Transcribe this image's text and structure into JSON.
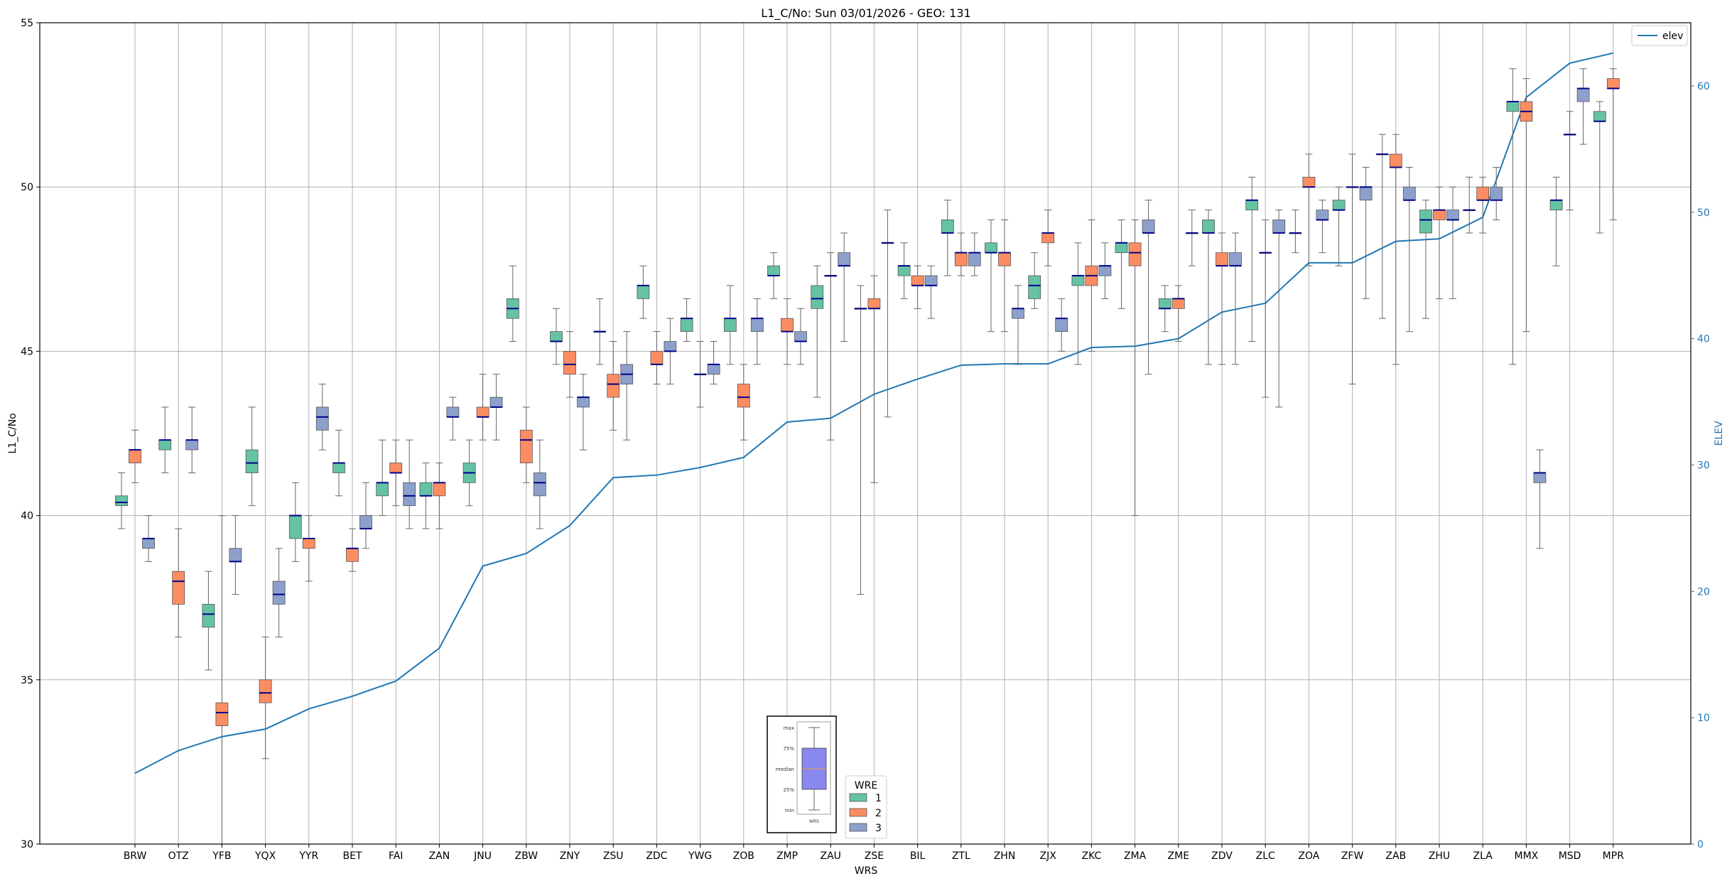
{
  "chart_data": {
    "type": "boxplot",
    "title": "L1_C/No: Sun 03/01/2026 - GEO: 131",
    "xlabel": "WRS",
    "ylabel": "L1_C/No",
    "y2label": "ELEV",
    "ylim": [
      30,
      55
    ],
    "y2lim": [
      0,
      65
    ],
    "yticks": [
      "30",
      "35",
      "40",
      "45",
      "50",
      "55"
    ],
    "y2ticks": [
      "0",
      "10",
      "20",
      "30",
      "40",
      "50",
      "60"
    ],
    "grid": true,
    "categories": [
      "BRW",
      "OTZ",
      "YFB",
      "YQX",
      "YYR",
      "BET",
      "FAI",
      "ZAN",
      "JNU",
      "ZBW",
      "ZNY",
      "ZSU",
      "ZDC",
      "YWG",
      "ZOB",
      "ZMP",
      "ZAU",
      "ZSE",
      "BIL",
      "ZTL",
      "ZHN",
      "ZJX",
      "ZKC",
      "ZMA",
      "ZME",
      "ZDV",
      "ZLC",
      "ZOA",
      "ZFW",
      "ZAB",
      "ZHU",
      "ZLA",
      "MMX",
      "MSD",
      "MPR"
    ],
    "legend_title": "WRE",
    "legend_placement": "lower-center",
    "colors": {
      "1": "#66c2a5",
      "2": "#fc8d62",
      "3": "#8da0cb",
      "elev": "#1f77b4",
      "median": "#00008b"
    },
    "series": [
      {
        "name": "1",
        "boxes": [
          [
            39.6,
            40.3,
            40.4,
            40.6,
            41.3
          ],
          [
            41.3,
            42.0,
            42.3,
            42.3,
            43.3
          ],
          [
            35.3,
            36.6,
            37.0,
            37.3,
            38.3
          ],
          [
            40.3,
            41.3,
            41.6,
            42.0,
            43.3
          ],
          [
            38.6,
            39.3,
            40.0,
            40.0,
            41.0
          ],
          [
            40.6,
            41.3,
            41.6,
            41.6,
            42.6
          ],
          [
            40.0,
            40.6,
            41.0,
            41.0,
            42.3
          ],
          [
            39.6,
            40.6,
            40.6,
            41.0,
            41.6
          ],
          [
            40.3,
            41.0,
            41.3,
            41.6,
            42.3
          ],
          [
            45.3,
            46.0,
            46.3,
            46.6,
            47.6
          ],
          [
            44.6,
            45.3,
            45.3,
            45.6,
            46.3
          ],
          [
            44.6,
            45.6,
            45.6,
            45.6,
            46.6
          ],
          [
            46.0,
            46.6,
            47.0,
            47.0,
            47.6
          ],
          [
            45.3,
            45.6,
            46.0,
            46.0,
            46.6
          ],
          [
            44.6,
            45.6,
            46.0,
            46.0,
            47.0
          ],
          [
            46.6,
            47.3,
            47.3,
            47.6,
            48.0
          ],
          [
            43.6,
            46.3,
            46.6,
            47.0,
            47.6
          ],
          [
            37.6,
            46.3,
            46.3,
            46.3,
            47.0
          ],
          [
            46.6,
            47.3,
            47.6,
            47.6,
            48.3
          ],
          [
            47.3,
            48.6,
            48.6,
            49.0,
            49.6
          ],
          [
            45.6,
            48.0,
            48.0,
            48.3,
            49.0
          ],
          [
            46.3,
            46.6,
            47.0,
            47.3,
            48.0
          ],
          [
            44.6,
            47.0,
            47.3,
            47.3,
            48.3
          ],
          [
            46.3,
            48.0,
            48.3,
            48.3,
            49.0
          ],
          [
            45.6,
            46.3,
            46.3,
            46.6,
            47.0
          ],
          [
            44.6,
            48.6,
            48.6,
            49.0,
            49.3
          ],
          [
            45.3,
            49.3,
            49.6,
            49.6,
            50.3
          ],
          [
            48.0,
            48.6,
            48.6,
            48.6,
            49.3
          ],
          [
            47.6,
            49.3,
            49.3,
            49.6,
            50.0
          ],
          [
            46.0,
            51.0,
            51.0,
            51.0,
            51.6
          ],
          [
            46.0,
            48.6,
            49.0,
            49.3,
            49.6
          ],
          [
            48.6,
            49.3,
            49.3,
            49.3,
            50.3
          ],
          [
            44.6,
            52.3,
            52.6,
            52.6,
            53.6
          ],
          [
            47.6,
            49.3,
            49.6,
            49.6,
            50.3
          ],
          [
            48.6,
            52.0,
            52.0,
            52.3,
            52.6
          ]
        ]
      },
      {
        "name": "2",
        "boxes": [
          [
            41.0,
            41.6,
            42.0,
            42.0,
            42.6
          ],
          [
            36.3,
            37.3,
            38.0,
            38.3,
            39.6
          ],
          [
            30.0,
            33.6,
            34.0,
            34.3,
            40.0
          ],
          [
            32.6,
            34.3,
            34.6,
            35.0,
            36.3
          ],
          [
            38.0,
            39.0,
            39.3,
            39.3,
            40.0
          ],
          [
            38.3,
            38.6,
            39.0,
            39.0,
            39.6
          ],
          [
            40.3,
            41.3,
            41.3,
            41.6,
            42.3
          ],
          [
            39.6,
            40.6,
            41.0,
            41.0,
            41.6
          ],
          [
            42.3,
            43.0,
            43.0,
            43.3,
            44.3
          ],
          [
            41.0,
            41.6,
            42.3,
            42.6,
            43.3
          ],
          [
            43.6,
            44.3,
            44.6,
            45.0,
            45.6
          ],
          [
            42.6,
            43.6,
            44.0,
            44.3,
            45.3
          ],
          [
            44.0,
            44.6,
            44.6,
            45.0,
            45.6
          ],
          [
            43.3,
            44.3,
            44.3,
            44.3,
            45.3
          ],
          [
            42.3,
            43.3,
            43.6,
            44.0,
            44.6
          ],
          [
            44.6,
            45.6,
            45.6,
            46.0,
            46.6
          ],
          [
            42.3,
            47.3,
            47.3,
            47.3,
            48.0
          ],
          [
            41.0,
            46.3,
            46.3,
            46.6,
            47.3
          ],
          [
            46.3,
            47.0,
            47.0,
            47.3,
            47.6
          ],
          [
            47.3,
            47.6,
            48.0,
            48.0,
            48.6
          ],
          [
            45.6,
            47.6,
            48.0,
            48.0,
            49.0
          ],
          [
            47.6,
            48.3,
            48.6,
            48.6,
            49.3
          ],
          [
            45.0,
            47.0,
            47.3,
            47.6,
            49.0
          ],
          [
            40.0,
            47.6,
            48.0,
            48.3,
            49.0
          ],
          [
            45.3,
            46.3,
            46.6,
            46.6,
            47.0
          ],
          [
            44.6,
            47.6,
            47.6,
            48.0,
            48.6
          ],
          [
            43.6,
            48.0,
            48.0,
            48.0,
            49.0
          ],
          [
            47.6,
            50.0,
            50.0,
            50.3,
            51.0
          ],
          [
            44.0,
            50.0,
            50.0,
            50.0,
            51.0
          ],
          [
            44.6,
            50.6,
            50.6,
            51.0,
            51.6
          ],
          [
            46.6,
            49.0,
            49.3,
            49.3,
            50.0
          ],
          [
            48.6,
            49.6,
            49.6,
            50.0,
            50.3
          ],
          [
            45.6,
            52.0,
            52.3,
            52.6,
            53.3
          ],
          [
            49.3,
            51.6,
            51.6,
            51.6,
            52.3
          ],
          [
            49.0,
            53.0,
            53.0,
            53.3,
            53.6
          ]
        ]
      },
      {
        "name": "3",
        "boxes": [
          [
            38.6,
            39.0,
            39.3,
            39.3,
            40.0
          ],
          [
            41.3,
            42.0,
            42.3,
            42.3,
            43.3
          ],
          [
            37.6,
            38.6,
            38.6,
            39.0,
            40.0
          ],
          [
            36.3,
            37.3,
            37.6,
            38.0,
            39.0
          ],
          [
            42.0,
            42.6,
            43.0,
            43.3,
            44.0
          ],
          [
            39.0,
            39.6,
            39.6,
            40.0,
            41.0
          ],
          [
            39.6,
            40.3,
            40.6,
            41.0,
            42.3
          ],
          [
            42.3,
            43.0,
            43.0,
            43.3,
            43.6
          ],
          [
            42.3,
            43.3,
            43.3,
            43.6,
            44.3
          ],
          [
            39.6,
            40.6,
            41.0,
            41.3,
            42.3
          ],
          [
            42.0,
            43.3,
            43.6,
            43.6,
            44.3
          ],
          [
            42.3,
            44.0,
            44.3,
            44.6,
            45.6
          ],
          [
            44.0,
            45.0,
            45.0,
            45.3,
            46.0
          ],
          [
            44.0,
            44.3,
            44.6,
            44.6,
            45.3
          ],
          [
            44.6,
            45.6,
            46.0,
            46.0,
            46.6
          ],
          [
            44.6,
            45.3,
            45.3,
            45.6,
            46.3
          ],
          [
            45.3,
            47.6,
            47.6,
            48.0,
            48.6
          ],
          [
            43.0,
            48.3,
            48.3,
            48.3,
            49.3
          ],
          [
            46.0,
            47.0,
            47.0,
            47.3,
            47.6
          ],
          [
            47.3,
            47.6,
            48.0,
            48.0,
            48.6
          ],
          [
            44.6,
            46.0,
            46.3,
            46.3,
            47.0
          ],
          [
            45.0,
            45.6,
            46.0,
            46.0,
            46.6
          ],
          [
            46.6,
            47.3,
            47.6,
            47.6,
            48.3
          ],
          [
            44.3,
            48.6,
            48.6,
            49.0,
            49.6
          ],
          [
            47.6,
            48.6,
            48.6,
            48.6,
            49.3
          ],
          [
            44.6,
            47.6,
            47.6,
            48.0,
            48.6
          ],
          [
            43.3,
            48.6,
            48.6,
            49.0,
            49.3
          ],
          [
            48.0,
            49.0,
            49.0,
            49.3,
            49.6
          ],
          [
            46.6,
            49.6,
            50.0,
            50.0,
            50.6
          ],
          [
            45.6,
            49.6,
            49.6,
            50.0,
            50.6
          ],
          [
            46.6,
            49.0,
            49.0,
            49.3,
            50.0
          ],
          [
            49.0,
            49.6,
            49.6,
            50.0,
            50.6
          ],
          [
            39.0,
            41.0,
            41.3,
            41.3,
            42.0
          ],
          [
            51.3,
            52.6,
            53.0,
            53.0,
            53.6
          ],
          [
            null,
            null,
            null,
            null,
            null
          ]
        ]
      }
    ],
    "elev": {
      "name": "elev",
      "categories_start": 0,
      "values": [
        5.6,
        7.4,
        8.5,
        9.1,
        10.7,
        11.7,
        12.9,
        15.5,
        22.0,
        23.0,
        25.2,
        29.0,
        29.2,
        29.8,
        30.6,
        33.4,
        33.7,
        35.6,
        36.8,
        37.9,
        38.0,
        38.0,
        39.3,
        39.4,
        40.0,
        42.1,
        42.8,
        46.0,
        46.0,
        47.7,
        47.9,
        49.6,
        59.1,
        61.8,
        62.6
      ]
    },
    "legend_entries": [
      "1",
      "2",
      "3"
    ],
    "elev_legend": "elev",
    "inset": {
      "labels": [
        "max",
        "75%",
        "median",
        "25%",
        "min"
      ],
      "xlabel": "WRS"
    }
  }
}
